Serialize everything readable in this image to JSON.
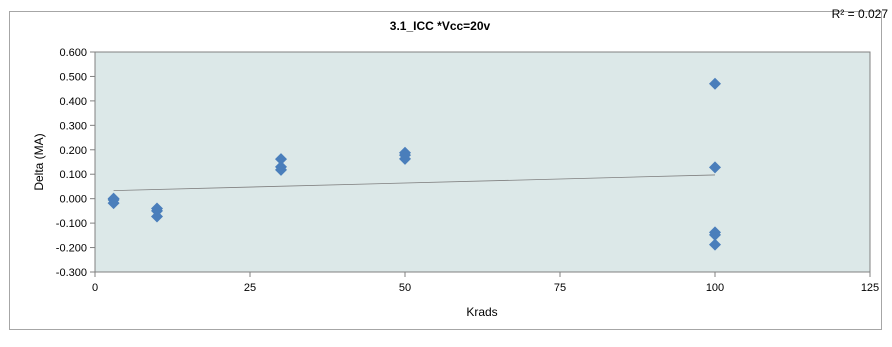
{
  "chart_data": {
    "type": "scatter",
    "title": "3.1_ICC  *Vcc=20v",
    "xlabel": "Krads",
    "ylabel": "Delta (MA)",
    "r2_label": "R² = 0.027",
    "xlim": [
      0,
      125
    ],
    "ylim": [
      -0.3,
      0.6
    ],
    "x_ticks": [
      0,
      25,
      50,
      75,
      100,
      125
    ],
    "x_tick_labels": [
      "0",
      "25",
      "50",
      "75",
      "100",
      "125"
    ],
    "y_ticks": [
      -0.3,
      -0.2,
      -0.1,
      0.0,
      0.1,
      0.2,
      0.3,
      0.4,
      0.5,
      0.6
    ],
    "y_tick_labels": [
      "-0.300",
      "-0.200",
      "-0.100",
      "0.000",
      "0.100",
      "0.200",
      "0.300",
      "0.400",
      "0.500",
      "0.600"
    ],
    "grid": false,
    "trendline": {
      "type": "linear",
      "x": [
        3,
        100
      ],
      "y": [
        0.033,
        0.097
      ]
    },
    "points": [
      {
        "x": 3,
        "y": 0.0
      },
      {
        "x": 3,
        "y": -0.005
      },
      {
        "x": 3,
        "y": -0.018
      },
      {
        "x": 10,
        "y": -0.04
      },
      {
        "x": 10,
        "y": -0.05
      },
      {
        "x": 10,
        "y": -0.073
      },
      {
        "x": 30,
        "y": 0.162
      },
      {
        "x": 30,
        "y": 0.13
      },
      {
        "x": 30,
        "y": 0.118
      },
      {
        "x": 50,
        "y": 0.188
      },
      {
        "x": 50,
        "y": 0.178
      },
      {
        "x": 50,
        "y": 0.163
      },
      {
        "x": 100,
        "y": 0.47
      },
      {
        "x": 100,
        "y": 0.128
      },
      {
        "x": 100,
        "y": -0.138
      },
      {
        "x": 100,
        "y": -0.148
      },
      {
        "x": 100,
        "y": -0.188
      }
    ],
    "colors": {
      "plot_bg": "#dce8e8",
      "marker": "#4a7ebb",
      "trendline": "#7f7f7f",
      "axis": "#808080",
      "border": "#a6a6a6",
      "text": "#000000"
    }
  }
}
